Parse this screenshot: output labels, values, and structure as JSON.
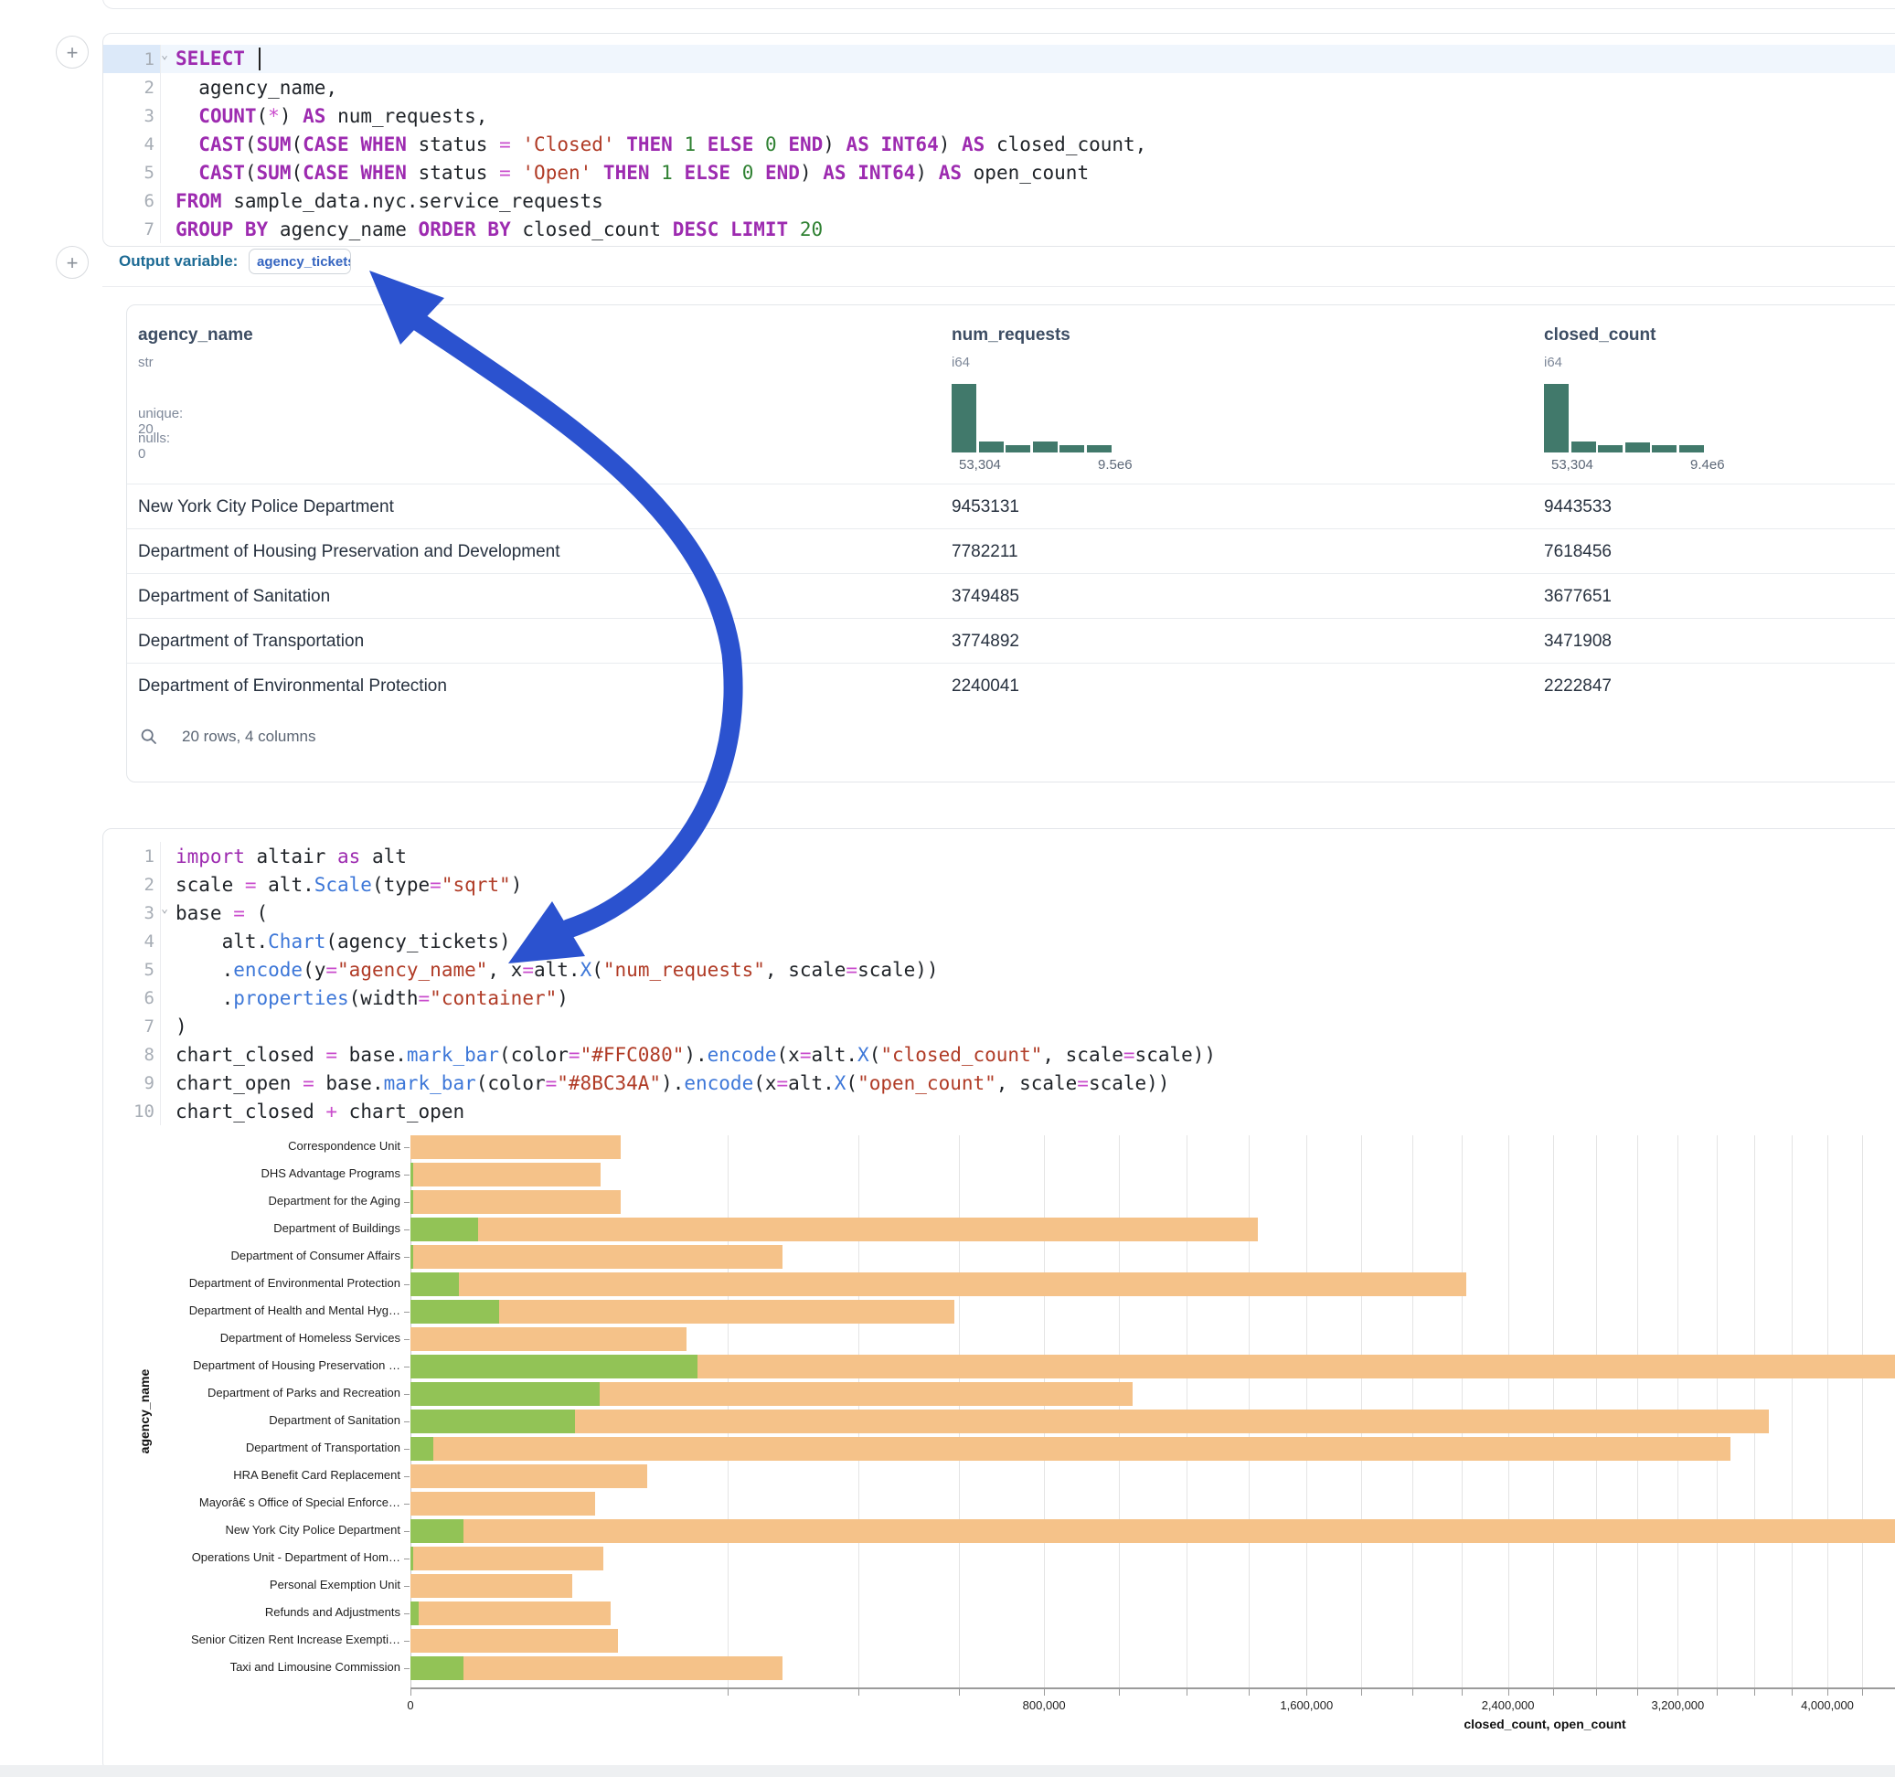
{
  "sql_cell": {
    "cursor_line": 1,
    "chevron_lines": [
      1
    ],
    "lines": [
      [
        [
          "k",
          "SELECT"
        ],
        [
          "p",
          " "
        ]
      ],
      [
        [
          "p",
          "  agency_name,"
        ]
      ],
      [
        [
          "p",
          "  "
        ],
        [
          "k",
          "COUNT"
        ],
        [
          "p",
          "("
        ],
        [
          "o",
          "*"
        ],
        [
          "p",
          ") "
        ],
        [
          "k",
          "AS"
        ],
        [
          "p",
          " num_requests,"
        ]
      ],
      [
        [
          "p",
          "  "
        ],
        [
          "k",
          "CAST"
        ],
        [
          "p",
          "("
        ],
        [
          "k",
          "SUM"
        ],
        [
          "p",
          "("
        ],
        [
          "k",
          "CASE"
        ],
        [
          "p",
          " "
        ],
        [
          "k",
          "WHEN"
        ],
        [
          "p",
          " status "
        ],
        [
          "o",
          "="
        ],
        [
          "p",
          " "
        ],
        [
          "s",
          "'Closed'"
        ],
        [
          "p",
          " "
        ],
        [
          "k",
          "THEN"
        ],
        [
          "p",
          " "
        ],
        [
          "n",
          "1"
        ],
        [
          "p",
          " "
        ],
        [
          "k",
          "ELSE"
        ],
        [
          "p",
          " "
        ],
        [
          "n",
          "0"
        ],
        [
          "p",
          " "
        ],
        [
          "k",
          "END"
        ],
        [
          "p",
          ") "
        ],
        [
          "k",
          "AS"
        ],
        [
          "p",
          " "
        ],
        [
          "k",
          "INT64"
        ],
        [
          "p",
          ") "
        ],
        [
          "k",
          "AS"
        ],
        [
          "p",
          " closed_count,"
        ]
      ],
      [
        [
          "p",
          "  "
        ],
        [
          "k",
          "CAST"
        ],
        [
          "p",
          "("
        ],
        [
          "k",
          "SUM"
        ],
        [
          "p",
          "("
        ],
        [
          "k",
          "CASE"
        ],
        [
          "p",
          " "
        ],
        [
          "k",
          "WHEN"
        ],
        [
          "p",
          " status "
        ],
        [
          "o",
          "="
        ],
        [
          "p",
          " "
        ],
        [
          "s",
          "'Open'"
        ],
        [
          "p",
          " "
        ],
        [
          "k",
          "THEN"
        ],
        [
          "p",
          " "
        ],
        [
          "n",
          "1"
        ],
        [
          "p",
          " "
        ],
        [
          "k",
          "ELSE"
        ],
        [
          "p",
          " "
        ],
        [
          "n",
          "0"
        ],
        [
          "p",
          " "
        ],
        [
          "k",
          "END"
        ],
        [
          "p",
          ") "
        ],
        [
          "k",
          "AS"
        ],
        [
          "p",
          " "
        ],
        [
          "k",
          "INT64"
        ],
        [
          "p",
          ") "
        ],
        [
          "k",
          "AS"
        ],
        [
          "p",
          " open_count"
        ]
      ],
      [
        [
          "k",
          "FROM"
        ],
        [
          "p",
          " sample_data.nyc.service_requests"
        ]
      ],
      [
        [
          "k",
          "GROUP"
        ],
        [
          "p",
          " "
        ],
        [
          "k",
          "BY"
        ],
        [
          "p",
          " agency_name "
        ],
        [
          "k",
          "ORDER"
        ],
        [
          "p",
          " "
        ],
        [
          "k",
          "BY"
        ],
        [
          "p",
          " closed_count "
        ],
        [
          "k",
          "DESC"
        ],
        [
          "p",
          " "
        ],
        [
          "k",
          "LIMIT"
        ],
        [
          "p",
          " "
        ],
        [
          "n",
          "20"
        ]
      ]
    ]
  },
  "output_variable": {
    "label": "Output variable:",
    "value": "agency_tickets"
  },
  "table": {
    "columns": [
      {
        "name": "agency_name",
        "type": "str",
        "stats": [
          "unique: 20",
          "nulls: 0"
        ],
        "x": 12
      },
      {
        "name": "num_requests",
        "type": "i64",
        "x": 902,
        "hist": [
          1.0,
          0.16,
          0.105,
          0.16,
          0.105,
          0.105
        ],
        "hist_labels": [
          "53,304",
          "9.5e6"
        ]
      },
      {
        "name": "closed_count",
        "type": "i64",
        "x": 1550,
        "hist": [
          1.0,
          0.155,
          0.1,
          0.15,
          0.1,
          0.1
        ],
        "hist_labels": [
          "53,304",
          "9.4e6"
        ]
      }
    ],
    "rows": [
      [
        "New York City Police Department",
        "9453131",
        "9443533"
      ],
      [
        "Department of Housing Preservation and Development",
        "7782211",
        "7618456"
      ],
      [
        "Department of Sanitation",
        "3749485",
        "3677651"
      ],
      [
        "Department of Transportation",
        "3774892",
        "3471908"
      ],
      [
        "Department of Environmental Protection",
        "2240041",
        "2222847"
      ]
    ],
    "footer": "20 rows, 4 columns"
  },
  "python_cell": {
    "chevron_lines": [
      3
    ],
    "lines": [
      [
        [
          "pk",
          "import"
        ],
        [
          "p",
          " altair "
        ],
        [
          "pk",
          "as"
        ],
        [
          "p",
          " alt"
        ]
      ],
      [
        [
          "p",
          "scale "
        ],
        [
          "o",
          "="
        ],
        [
          "p",
          " alt."
        ],
        [
          "f",
          "Scale"
        ],
        [
          "p",
          "(type"
        ],
        [
          "o",
          "="
        ],
        [
          "s",
          "\"sqrt\""
        ],
        [
          "p",
          ")"
        ]
      ],
      [
        [
          "p",
          "base "
        ],
        [
          "o",
          "="
        ],
        [
          "p",
          " ("
        ]
      ],
      [
        [
          "p",
          "    alt."
        ],
        [
          "f",
          "Chart"
        ],
        [
          "p",
          "(agency_tickets)"
        ]
      ],
      [
        [
          "p",
          "    ."
        ],
        [
          "f",
          "encode"
        ],
        [
          "p",
          "(y"
        ],
        [
          "o",
          "="
        ],
        [
          "s",
          "\"agency_name\""
        ],
        [
          "p",
          ", x"
        ],
        [
          "o",
          "="
        ],
        [
          "p",
          "alt."
        ],
        [
          "f",
          "X"
        ],
        [
          "p",
          "("
        ],
        [
          "s",
          "\"num_requests\""
        ],
        [
          "p",
          ", scale"
        ],
        [
          "o",
          "="
        ],
        [
          "p",
          "scale))"
        ]
      ],
      [
        [
          "p",
          "    ."
        ],
        [
          "f",
          "properties"
        ],
        [
          "p",
          "(width"
        ],
        [
          "o",
          "="
        ],
        [
          "s",
          "\"container\""
        ],
        [
          "p",
          ")"
        ]
      ],
      [
        [
          "p",
          ")"
        ]
      ],
      [
        [
          "p",
          "chart_closed "
        ],
        [
          "o",
          "="
        ],
        [
          "p",
          " base."
        ],
        [
          "f",
          "mark_bar"
        ],
        [
          "p",
          "(color"
        ],
        [
          "o",
          "="
        ],
        [
          "s",
          "\"#FFC080\""
        ],
        [
          "p",
          ")."
        ],
        [
          "f",
          "encode"
        ],
        [
          "p",
          "(x"
        ],
        [
          "o",
          "="
        ],
        [
          "p",
          "alt."
        ],
        [
          "f",
          "X"
        ],
        [
          "p",
          "("
        ],
        [
          "s",
          "\"closed_count\""
        ],
        [
          "p",
          ", scale"
        ],
        [
          "o",
          "="
        ],
        [
          "p",
          "scale))"
        ]
      ],
      [
        [
          "p",
          "chart_open "
        ],
        [
          "o",
          "="
        ],
        [
          "p",
          " base."
        ],
        [
          "f",
          "mark_bar"
        ],
        [
          "p",
          "(color"
        ],
        [
          "o",
          "="
        ],
        [
          "s",
          "\"#8BC34A\""
        ],
        [
          "p",
          ")."
        ],
        [
          "f",
          "encode"
        ],
        [
          "p",
          "(x"
        ],
        [
          "o",
          "="
        ],
        [
          "p",
          "alt."
        ],
        [
          "f",
          "X"
        ],
        [
          "p",
          "("
        ],
        [
          "s",
          "\"open_count\""
        ],
        [
          "p",
          ", scale"
        ],
        [
          "o",
          "="
        ],
        [
          "p",
          "scale))"
        ]
      ],
      [
        [
          "p",
          "chart_closed "
        ],
        [
          "o",
          "+"
        ],
        [
          "p",
          " chart_open"
        ]
      ]
    ]
  },
  "chart_data": {
    "type": "bar",
    "orientation": "horizontal",
    "x_scale_type": "sqrt",
    "xlabel": "closed_count, open_count",
    "ylabel": "agency_name",
    "x_tick_values": [
      0,
      800000,
      1600000,
      2400000,
      3200000,
      4000000
    ],
    "x_tick_labels": [
      "0",
      "800,000",
      "1,600,000",
      "2,400,000",
      "3,200,000",
      "4,000,000"
    ],
    "minor_tick_step": 200000,
    "categories": [
      "Correspondence Unit",
      "DHS Advantage Programs",
      "Department for the Aging",
      "Department of Buildings",
      "Department of Consumer Affairs",
      "Department of Environmental Protection",
      "Department of Health and Mental Hyg…",
      "Department of Homeless Services",
      "Department of Housing Preservation …",
      "Department of Parks and Recreation",
      "Department of Sanitation",
      "Department of Transportation",
      "HRA Benefit Card Replacement",
      "Mayorâ€ s Office of Special Enforce…",
      "New York City Police Department",
      "Operations Unit - Department of Hom…",
      "Personal Exemption Unit",
      "Refunds and Adjustments",
      "Senior Citizen Rent Increase Exempti…",
      "Taxi and Limousine Commission"
    ],
    "series": [
      {
        "name": "closed_count",
        "color": "#F5C289",
        "values": [
          88000,
          72000,
          88000,
          1430000,
          276000,
          2222847,
          590000,
          152000,
          7618456,
          1040000,
          3677651,
          3471908,
          112000,
          68000,
          9443533,
          74000,
          52000,
          80000,
          86000,
          276000
        ]
      },
      {
        "name": "open_count",
        "color": "#92C356",
        "values": [
          0,
          20,
          20,
          9100,
          20,
          4700,
          15700,
          0,
          163755,
          71000,
          54000,
          1000,
          0,
          0,
          5600,
          15,
          0,
          140,
          0,
          5600
        ]
      }
    ]
  },
  "annotation_arrow": {
    "color": "#2b52cf"
  },
  "icons": {
    "plus": "+",
    "search": "magnifier",
    "chevron": "⌄"
  }
}
